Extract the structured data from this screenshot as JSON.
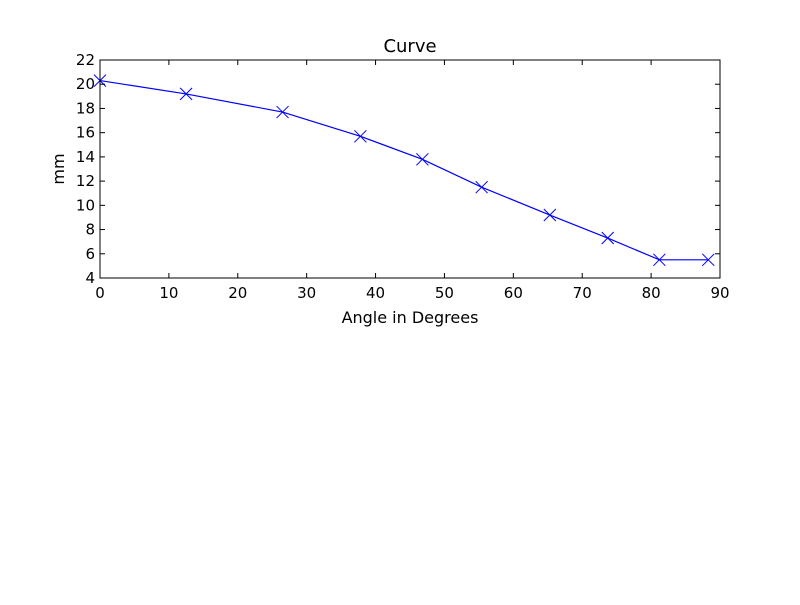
{
  "chart_data": {
    "type": "line",
    "title": "Curve",
    "xlabel": "Angle in Degrees",
    "ylabel": "mm",
    "xlim": [
      0,
      90
    ],
    "ylim": [
      4,
      22
    ],
    "xticks": [
      0,
      10,
      20,
      30,
      40,
      50,
      60,
      70,
      80,
      90
    ],
    "yticks": [
      4,
      6,
      8,
      10,
      12,
      14,
      16,
      18,
      20,
      22
    ],
    "grid": false,
    "series": [
      {
        "color": "#0000ff",
        "marker": "x",
        "x": [
          0,
          12.5,
          26.5,
          37.8,
          46.8,
          55.4,
          65.3,
          73.7,
          81.2,
          88.3
        ],
        "y": [
          20.3,
          19.2,
          17.7,
          15.7,
          13.8,
          11.5,
          9.2,
          7.3,
          5.5,
          5.5
        ]
      }
    ]
  }
}
